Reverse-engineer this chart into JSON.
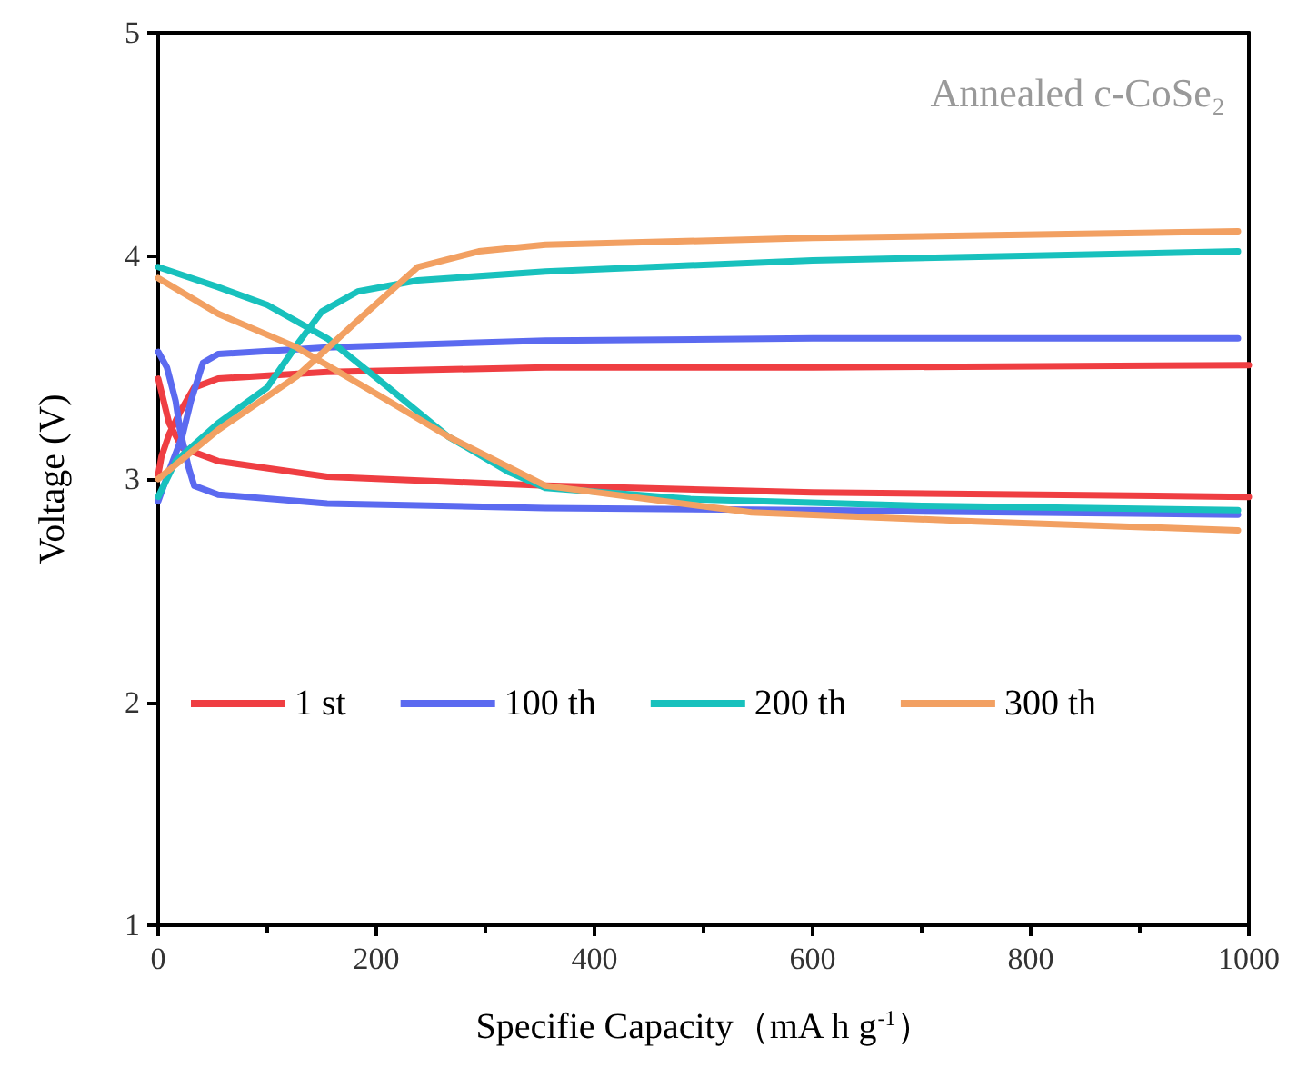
{
  "chart_data": {
    "type": "line",
    "xlabel": "Specifie Capacity（mA h g$^{-1}$）",
    "ylabel": "Voltage (V)",
    "annotations": [
      "Annealed c-CoSe₂"
    ],
    "xlim": [
      0,
      1000
    ],
    "ylim": [
      1,
      5
    ],
    "xticks": [
      0,
      200,
      400,
      600,
      800,
      1000
    ],
    "yticks": [
      1,
      2,
      3,
      4,
      5
    ],
    "grid": false,
    "legend": "center",
    "marker": "none",
    "line_style": "solid",
    "series": [
      {
        "name": "1 st",
        "color": "#ef3e42",
        "x": [
          0,
          3,
          10,
          20,
          33,
          55,
          155,
          355,
          600,
          1000,
          null,
          0,
          5,
          10,
          22,
          55,
          155,
          355,
          600,
          1000
        ],
        "values": [
          3.02,
          3.1,
          3.2,
          3.3,
          3.41,
          3.45,
          3.48,
          3.5,
          3.5,
          3.51,
          null,
          3.45,
          3.35,
          3.25,
          3.14,
          3.08,
          3.01,
          2.97,
          2.94,
          2.92
        ]
      },
      {
        "name": "100 th",
        "color": "#5b6af0",
        "x": [
          0,
          11,
          22,
          30,
          41,
          55,
          155,
          355,
          600,
          990,
          null,
          0,
          8,
          16,
          20,
          28,
          33,
          55,
          155,
          355,
          600,
          990
        ],
        "values": [
          2.9,
          3.05,
          3.19,
          3.35,
          3.52,
          3.56,
          3.59,
          3.62,
          3.63,
          3.63,
          null,
          3.57,
          3.5,
          3.35,
          3.22,
          3.05,
          2.97,
          2.93,
          2.89,
          2.87,
          2.86,
          2.84
        ]
      },
      {
        "name": "200 th",
        "color": "#18c1bd",
        "x": [
          0,
          16,
          55,
          100,
          127,
          150,
          183,
          238,
          355,
          600,
          990,
          null,
          0,
          55,
          100,
          155,
          211,
          266,
          322,
          355,
          488,
          700,
          990
        ],
        "values": [
          2.92,
          3.08,
          3.25,
          3.41,
          3.6,
          3.75,
          3.84,
          3.89,
          3.93,
          3.98,
          4.02,
          null,
          3.95,
          3.86,
          3.78,
          3.63,
          3.41,
          3.19,
          3.03,
          2.96,
          2.91,
          2.88,
          2.86
        ]
      },
      {
        "name": "300 th",
        "color": "#f2a062",
        "x": [
          0,
          55,
          127,
          183,
          238,
          294,
          355,
          600,
          990,
          null,
          0,
          55,
          127,
          211,
          266,
          355,
          544,
          750,
          990
        ],
        "values": [
          3.0,
          3.22,
          3.46,
          3.71,
          3.95,
          4.02,
          4.05,
          4.08,
          4.11,
          null,
          3.9,
          3.74,
          3.59,
          3.35,
          3.19,
          2.97,
          2.85,
          2.81,
          2.77
        ]
      }
    ]
  }
}
